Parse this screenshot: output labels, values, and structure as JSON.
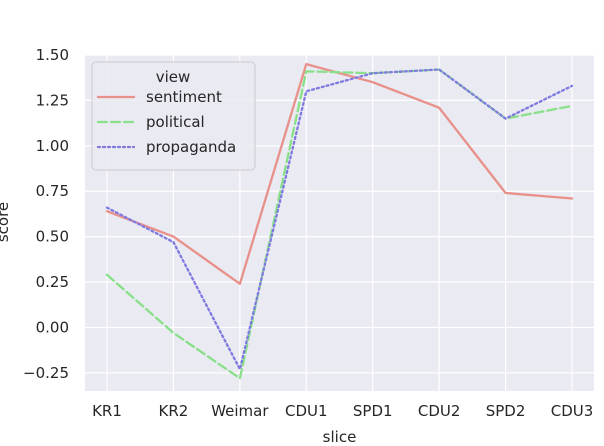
{
  "chart_data": {
    "type": "line",
    "title": "",
    "xlabel": "slice",
    "ylabel": "score",
    "categories": [
      "KR1",
      "KR2",
      "Weimar",
      "CDU1",
      "SPD1",
      "CDU2",
      "SPD2",
      "CDU3"
    ],
    "ylim": [
      -0.35,
      1.5
    ],
    "yticks": [
      -0.25,
      0.0,
      0.25,
      0.5,
      0.75,
      1.0,
      1.25,
      1.5
    ],
    "ytick_labels": [
      "−0.25",
      "0.00",
      "0.25",
      "0.50",
      "0.75",
      "1.00",
      "1.25",
      "1.50"
    ],
    "grid": true,
    "background": "#eaeaf2",
    "legend": {
      "title": "view",
      "position": "top-left"
    },
    "series": [
      {
        "name": "sentiment",
        "color": "#e8908a",
        "dash": "solid",
        "values": [
          0.64,
          0.5,
          0.24,
          1.45,
          1.35,
          1.21,
          0.74,
          0.71
        ]
      },
      {
        "name": "political",
        "color": "#88e088",
        "dash": "dashed",
        "values": [
          0.29,
          -0.03,
          -0.28,
          1.41,
          1.4,
          1.42,
          1.15,
          1.22
        ]
      },
      {
        "name": "propaganda",
        "color": "#7f7ae0",
        "dash": "dotted",
        "values": [
          0.66,
          0.47,
          -0.23,
          1.3,
          1.4,
          1.42,
          1.15,
          1.33
        ]
      }
    ]
  }
}
